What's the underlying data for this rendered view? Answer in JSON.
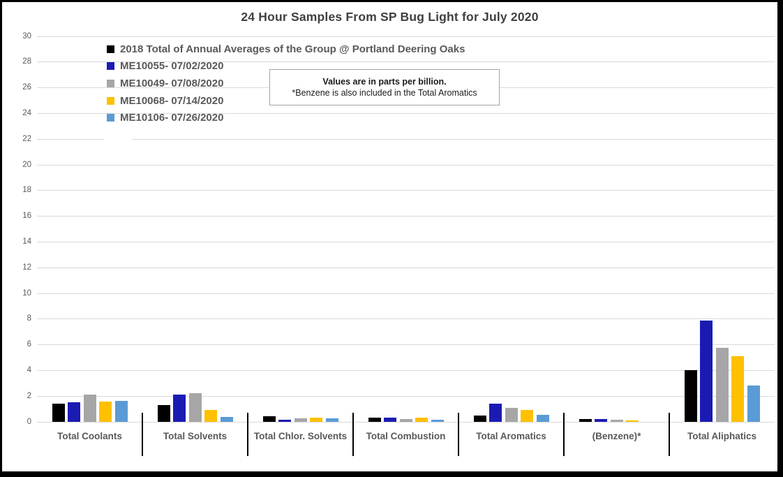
{
  "title": "24 Hour Samples From SP Bug Light for July 2020",
  "note": {
    "line1": "Values are in parts per billion.",
    "line2": "*Benzene is also included in the Total Aromatics"
  },
  "colors": {
    "grid": "#d9d9d9",
    "axis_text": "#595959",
    "title_text": "#404040",
    "note_border": "#a6a6a6",
    "divider": "#000000"
  },
  "chart_data": {
    "type": "bar",
    "title": "24 Hour Samples From SP Bug Light for July 2020",
    "units": "parts per billion",
    "grid": true,
    "legend_position": "inside-top-left",
    "ylim": [
      0,
      30
    ],
    "ytick_step": 2,
    "xlabel": "",
    "ylabel": "",
    "categories": [
      "Total Coolants",
      "Total Solvents",
      "Total Chlor. Solvents",
      "Total Combustion",
      "Total Aromatics",
      "(Benzene)*",
      "Total Aliphatics"
    ],
    "series": [
      {
        "name": "2018 Total of Annual Averages of the Group @ Portland Deering Oaks",
        "color": "#000000",
        "values": [
          1.4,
          1.3,
          0.45,
          0.3,
          0.5,
          0.2,
          4.0
        ]
      },
      {
        "name": "ME10055- 07/02/2020",
        "color": "#1b1bb3",
        "values": [
          1.5,
          2.1,
          0.15,
          0.3,
          1.4,
          0.2,
          7.9
        ]
      },
      {
        "name": "ME10049- 07/08/2020",
        "color": "#a6a6a6",
        "values": [
          2.1,
          2.25,
          0.25,
          0.2,
          1.1,
          0.15,
          5.75
        ]
      },
      {
        "name": "ME10068- 07/14/2020",
        "color": "#ffc000",
        "values": [
          1.6,
          0.95,
          0.3,
          0.3,
          0.9,
          0.1,
          5.1
        ]
      },
      {
        "name": "ME10106- 07/26/2020",
        "color": "#5b9bd5",
        "values": [
          1.65,
          0.4,
          0.25,
          0.15,
          0.55,
          0,
          2.8
        ]
      }
    ]
  }
}
